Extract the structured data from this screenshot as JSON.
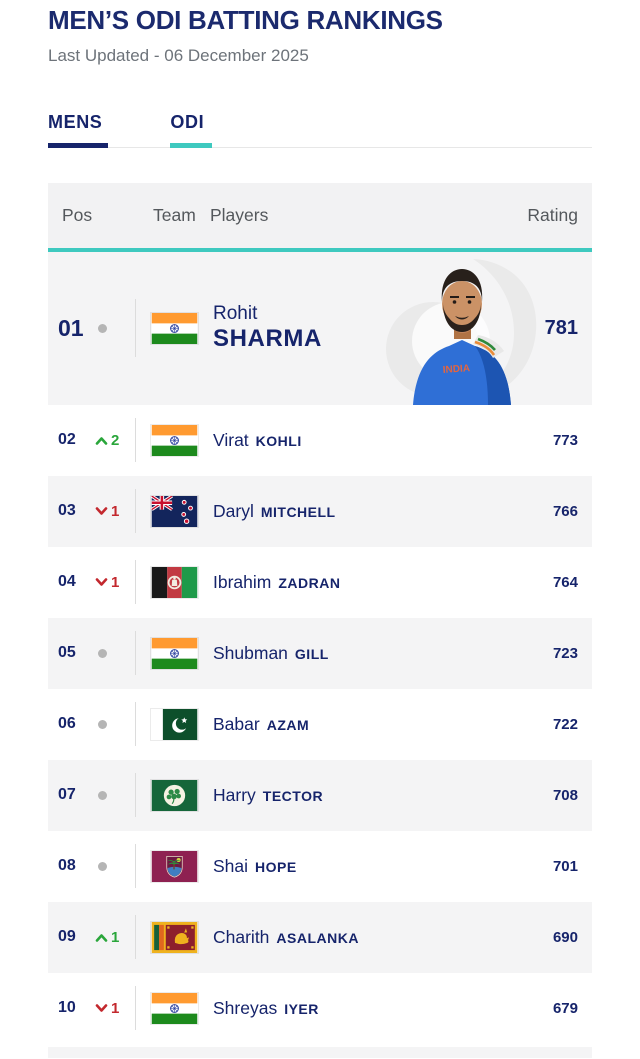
{
  "header": {
    "title": "MEN’S ODI BATTING RANKINGS",
    "subtitle": "Last Updated - 06 December 2025"
  },
  "tabs": [
    {
      "label": "MENS",
      "active": true
    },
    {
      "label": "ODI",
      "active": true
    }
  ],
  "table": {
    "headers": {
      "pos": "Pos",
      "team": "Team",
      "players": "Players",
      "rating": "Rating"
    },
    "rows": [
      {
        "pos": "01",
        "movement": {
          "dir": "none",
          "value": ""
        },
        "team": "IND",
        "flag_icon": "india-flag-icon",
        "first": "Rohit",
        "last": "SHARMA",
        "rating": "781",
        "featured": true,
        "photo_icon": "rohit-sharma-photo"
      },
      {
        "pos": "02",
        "movement": {
          "dir": "up",
          "value": "2"
        },
        "team": "IND",
        "flag_icon": "india-flag-icon",
        "first": "Virat",
        "last": "KOHLI",
        "rating": "773"
      },
      {
        "pos": "03",
        "movement": {
          "dir": "down",
          "value": "1"
        },
        "team": "NZ",
        "flag_icon": "new-zealand-flag-icon",
        "first": "Daryl",
        "last": "MITCHELL",
        "rating": "766"
      },
      {
        "pos": "04",
        "movement": {
          "dir": "down",
          "value": "1"
        },
        "team": "AFG",
        "flag_icon": "afghanistan-flag-icon",
        "first": "Ibrahim",
        "last": "ZADRAN",
        "rating": "764"
      },
      {
        "pos": "05",
        "movement": {
          "dir": "none",
          "value": ""
        },
        "team": "IND",
        "flag_icon": "india-flag-icon",
        "first": "Shubman",
        "last": "GILL",
        "rating": "723"
      },
      {
        "pos": "06",
        "movement": {
          "dir": "none",
          "value": ""
        },
        "team": "PAK",
        "flag_icon": "pakistan-flag-icon",
        "first": "Babar",
        "last": "AZAM",
        "rating": "722"
      },
      {
        "pos": "07",
        "movement": {
          "dir": "none",
          "value": ""
        },
        "team": "IRE",
        "flag_icon": "ireland-flag-icon",
        "first": "Harry",
        "last": "TECTOR",
        "rating": "708"
      },
      {
        "pos": "08",
        "movement": {
          "dir": "none",
          "value": ""
        },
        "team": "WI",
        "flag_icon": "west-indies-flag-icon",
        "first": "Shai",
        "last": "HOPE",
        "rating": "701"
      },
      {
        "pos": "09",
        "movement": {
          "dir": "up",
          "value": "1"
        },
        "team": "SL",
        "flag_icon": "sri-lanka-flag-icon",
        "first": "Charith",
        "last": "ASALANKA",
        "rating": "690"
      },
      {
        "pos": "10",
        "movement": {
          "dir": "down",
          "value": "1"
        },
        "team": "IND",
        "flag_icon": "india-flag-icon",
        "first": "Shreyas",
        "last": "IYER",
        "rating": "679"
      }
    ]
  },
  "colors": {
    "navy": "#16246b",
    "title_navy": "#1b2a6e",
    "teal": "#3ec9bf",
    "up_green": "#2aa63b",
    "down_red": "#c3282e",
    "dot_gray": "#b5b5b5",
    "row_alt_bg": "#f4f4f5",
    "header_bg": "#f2f2f3"
  }
}
